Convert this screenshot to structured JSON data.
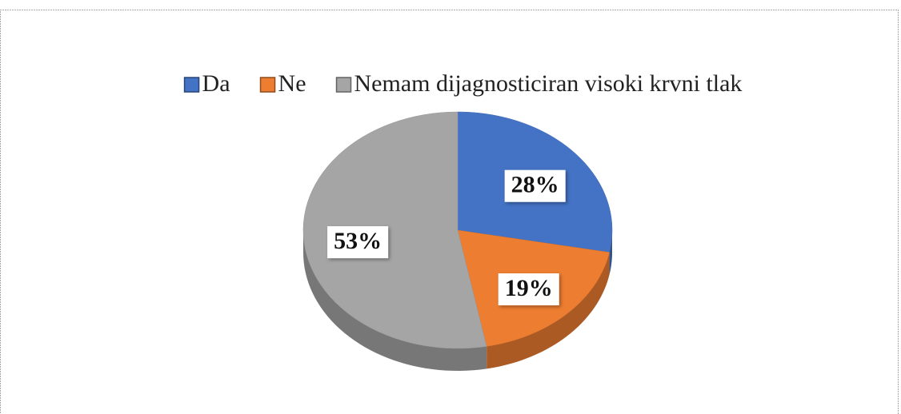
{
  "chart_data": {
    "type": "pie",
    "categories": [
      "Da",
      "Ne",
      "Nemam dijagnosticiran visoki krvni tlak"
    ],
    "values": [
      28,
      19,
      53
    ],
    "value_labels": [
      "28%",
      "19%",
      "53%"
    ],
    "colors": [
      "#4472c4",
      "#ed7d31",
      "#a5a5a5"
    ],
    "legend": "top"
  }
}
